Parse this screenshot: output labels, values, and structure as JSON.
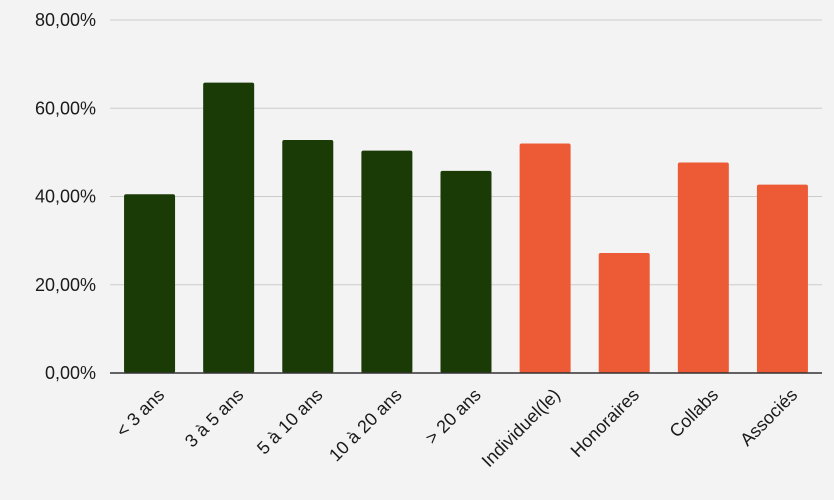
{
  "chart_data": {
    "type": "bar",
    "categories": [
      "< 3 ans",
      "3 à 5 ans",
      "5 à 10 ans",
      "10 à 20 ans",
      "> 20 ans",
      "Individuel(le)",
      "Honoraires",
      "Collabs",
      "Associés"
    ],
    "values": [
      40.5,
      65.8,
      52.8,
      50.4,
      45.8,
      52.0,
      27.2,
      47.7,
      42.7
    ],
    "bar_colors": [
      "#1a3a06",
      "#1a3a06",
      "#1a3a06",
      "#1a3a06",
      "#1a3a06",
      "#ec5b35",
      "#ec5b35",
      "#ec5b35",
      "#ec5b35"
    ],
    "yticks": [
      "0,00%",
      "20,00%",
      "40,00%",
      "60,00%",
      "80,00%"
    ],
    "ylim": [
      0,
      80
    ],
    "grid": true,
    "title": "",
    "xlabel": "",
    "ylabel": ""
  }
}
